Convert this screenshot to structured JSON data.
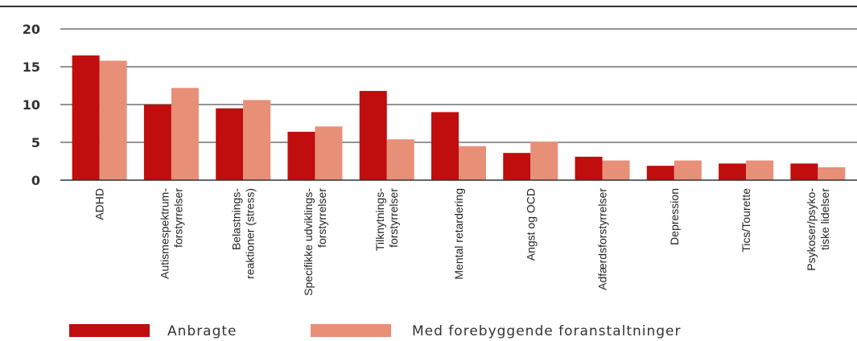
{
  "chart_data": {
    "type": "bar",
    "categories": [
      [
        "ADHD"
      ],
      [
        "Autismespektrum-",
        "forstyrrelser"
      ],
      [
        "Belastnings-",
        "reaktioner (stress)"
      ],
      [
        "Specifikke udviklings-",
        "forstyrrelser"
      ],
      [
        "Tilknytnings-",
        "forstyrrelser"
      ],
      [
        "Mental retardering"
      ],
      [
        "Angst og OCD"
      ],
      [
        "Adfærdsforstyrrelser"
      ],
      [
        "Depression"
      ],
      [
        "Tics/Tourette"
      ],
      [
        "Psykoser/psyko-",
        "tiske lidelser"
      ]
    ],
    "series": [
      {
        "name": "Anbragte",
        "color": "#c00d0d",
        "values": [
          16.5,
          10.0,
          9.5,
          6.4,
          11.8,
          9.0,
          3.6,
          3.1,
          1.9,
          2.2,
          2.2
        ]
      },
      {
        "name": "Med forebyggende foranstaltninger",
        "color": "#e88f78",
        "values": [
          15.8,
          12.2,
          10.6,
          7.1,
          5.4,
          4.5,
          5.1,
          2.6,
          2.6,
          2.6,
          1.7
        ]
      }
    ],
    "yticks": [
      0,
      5,
      10,
      15,
      20
    ],
    "ylim": [
      0,
      20
    ],
    "grid": true,
    "legend": "bottom-left"
  }
}
